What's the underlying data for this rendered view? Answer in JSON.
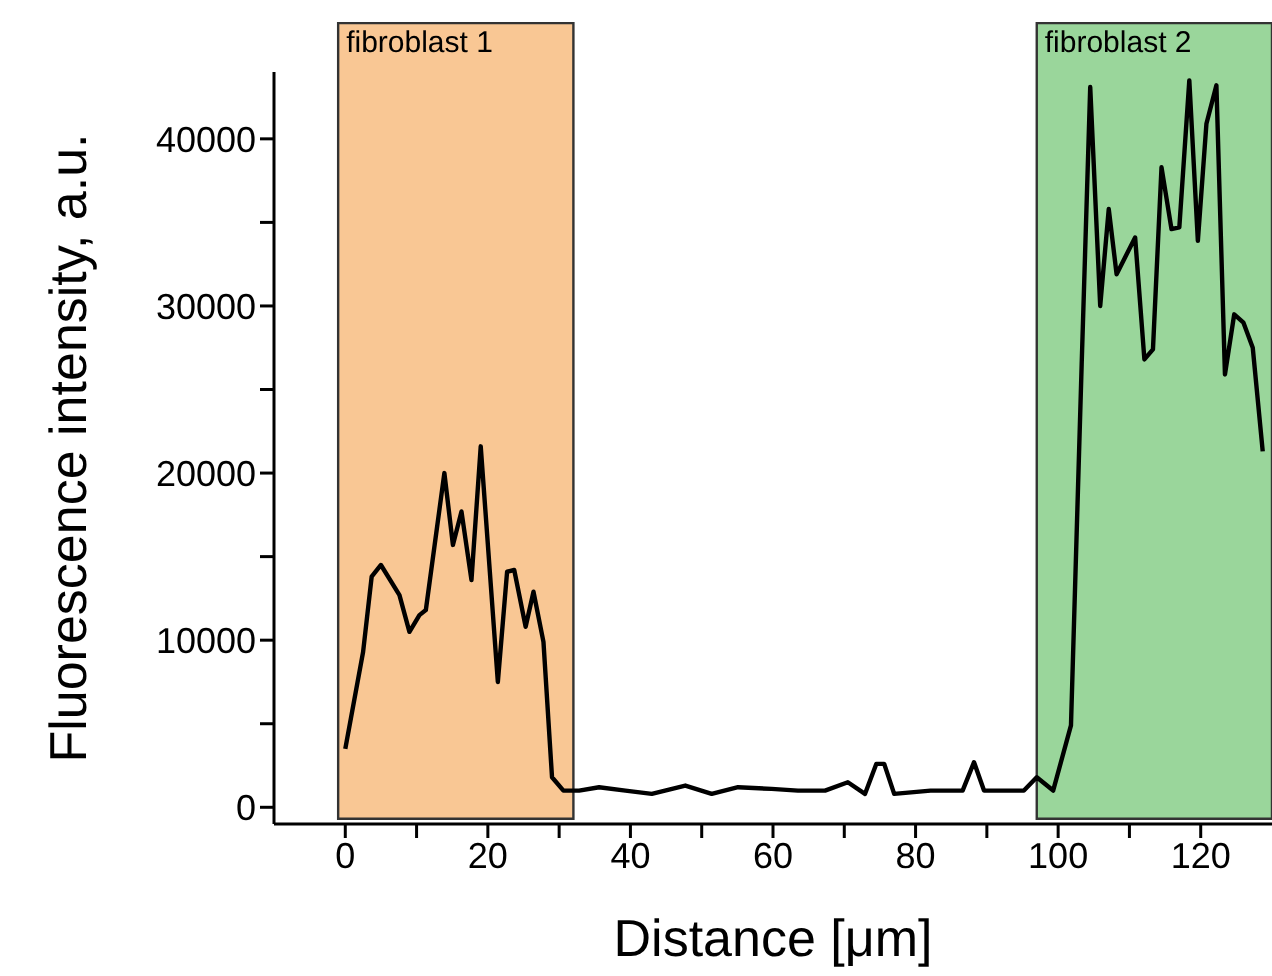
{
  "chart_data": {
    "type": "line",
    "xlabel": "Distance [μm]",
    "ylabel": "Fluorescence intensity, a.u.",
    "xlim": [
      -10,
      130
    ],
    "ylim": [
      -1000,
      44000
    ],
    "xticks": [
      0,
      {
        "value": 10,
        "label": null
      },
      20,
      {
        "value": 30,
        "label": null
      },
      40,
      {
        "value": 50,
        "label": null
      },
      60,
      {
        "value": 70,
        "label": null
      },
      80,
      {
        "value": 90,
        "label": null
      },
      100,
      {
        "value": 110,
        "label": null
      },
      120
    ],
    "yticks": [
      0,
      {
        "value": 5000,
        "label": null
      },
      10000,
      {
        "value": 15000,
        "label": null
      },
      20000,
      {
        "value": 25000,
        "label": null
      },
      30000,
      {
        "value": 35000,
        "label": null
      },
      40000
    ],
    "grid": false,
    "legend": false,
    "marker": "none",
    "line_style": "solid",
    "bands": [
      {
        "axis": "x",
        "from": -1,
        "to": 32,
        "label": "fibroblast 1",
        "color": "#f9c794"
      },
      {
        "axis": "x",
        "from": 97,
        "to": 130,
        "label": "fibroblast 2",
        "color": "#9ad69b"
      }
    ],
    "series": [
      {
        "color": "#000000",
        "x": [
          0,
          2.5,
          3.7,
          5,
          7.6,
          9,
          10.4,
          11.3,
          13.9,
          15.1,
          16.3,
          17.7,
          19,
          21.4,
          22.7,
          23.7,
          25.3,
          26.4,
          27.8,
          29,
          30.6,
          32.8,
          35.6,
          39.3,
          43,
          47.7,
          51.4,
          55.1,
          59.8,
          63.5,
          67.3,
          70.5,
          72.9,
          74.5,
          75.6,
          77,
          82.1,
          86.6,
          88.2,
          89.6,
          95.2,
          97,
          99.3,
          101.8,
          103.3,
          104.5,
          105.9,
          107.1,
          108.2,
          110.8,
          112.1,
          113.3,
          114.5,
          115.9,
          117,
          118.4,
          119.6,
          120.8,
          122.2,
          123.4,
          124.7,
          126,
          127.3,
          128.7
        ],
        "values": [
          3500,
          9300,
          13800,
          14500,
          12700,
          10500,
          11500,
          11800,
          20000,
          15700,
          17700,
          13600,
          21600,
          7500,
          14100,
          14200,
          10800,
          12900,
          9900,
          1800,
          1000,
          1000,
          1200,
          1000,
          800,
          1300,
          800,
          1200,
          1100,
          1000,
          1000,
          1500,
          800,
          2600,
          2600,
          800,
          1000,
          1000,
          2700,
          1000,
          1000,
          1800,
          1000,
          4900,
          26500,
          43100,
          30000,
          35800,
          31900,
          34100,
          26800,
          27400,
          38300,
          34600,
          34700,
          43500,
          33900,
          40900,
          43200,
          25900,
          29500,
          29000,
          27500,
          21300
        ]
      }
    ]
  }
}
